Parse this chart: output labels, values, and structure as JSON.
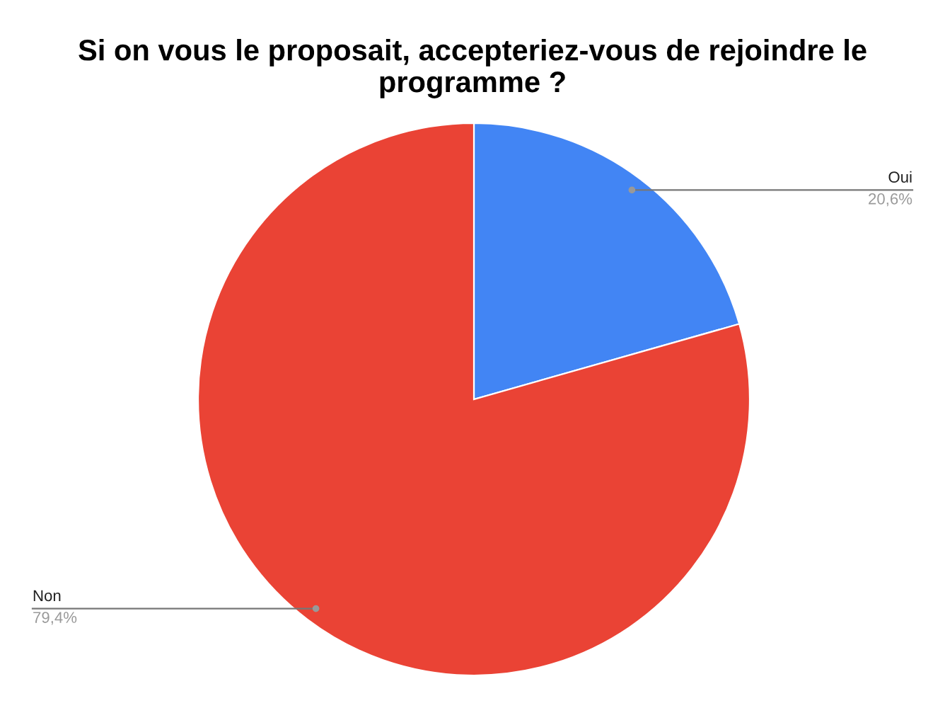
{
  "chart_data": {
    "type": "pie",
    "title": "Si on vous le proposait, accepteriez-vous de rejoindre le programme ?",
    "categories": [
      "Oui",
      "Non"
    ],
    "values": [
      20.6,
      79.4
    ],
    "value_labels": [
      "20,6%",
      "79,4%"
    ],
    "colors": [
      "#4285f4",
      "#ea4335"
    ]
  }
}
